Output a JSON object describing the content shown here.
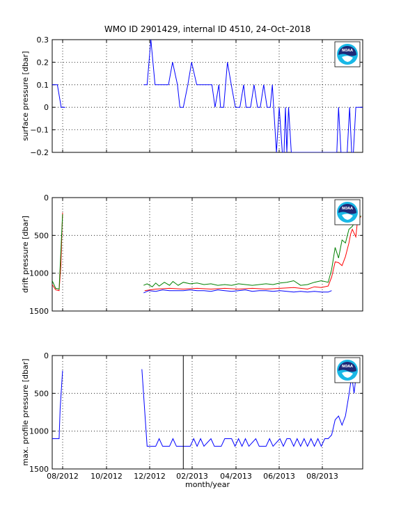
{
  "title": "WMO ID 2901429, internal ID 4510, 24–Oct–2018",
  "xlabel": "month/year",
  "x_ticks": [
    "08/2012",
    "10/2012",
    "12/2012",
    "02/2013",
    "04/2013",
    "06/2013",
    "08/2013"
  ],
  "logo": {
    "name": "noaa-logo",
    "text": "NOAA",
    "colors": {
      "navy": "#1e2a78",
      "cyan": "#19b8e6",
      "white": "#ffffff"
    }
  },
  "chart_data": [
    {
      "type": "line",
      "name": "surface-pressure",
      "ylabel": "surface pressure [dbar]",
      "ylim": [
        -0.2,
        0.3
      ],
      "yticks": [
        "0.3",
        "0.2",
        "0.1",
        "0",
        "−0.1",
        "−0.2"
      ],
      "ytick_values": [
        0.3,
        0.2,
        0.1,
        0,
        -0.1,
        -0.2
      ],
      "y_reversed": false,
      "grid": true,
      "series": [
        {
          "color": "#0000ff",
          "points": [
            [
              0.0,
              0.1
            ],
            [
              1.5,
              0.1
            ],
            [
              2.6,
              0.0
            ],
            [
              3.8,
              0.0
            ],
            [
              null,
              null
            ],
            [
              26.5,
              0.1
            ],
            [
              27.5,
              0.1
            ],
            [
              28.6,
              0.3
            ],
            [
              29.8,
              0.1
            ],
            [
              33.7,
              0.1
            ],
            [
              34.9,
              0.2
            ],
            [
              36.3,
              0.1
            ],
            [
              37.0,
              0.0
            ],
            [
              38.0,
              0.0
            ],
            [
              39.3,
              0.1
            ],
            [
              40.4,
              0.2
            ],
            [
              41.9,
              0.1
            ],
            [
              43.0,
              0.1
            ],
            [
              45.1,
              0.1
            ],
            [
              46.3,
              0.1
            ],
            [
              47.2,
              0.0
            ],
            [
              48.3,
              0.1
            ],
            [
              48.8,
              0.0
            ],
            [
              49.7,
              0.0
            ],
            [
              50.8,
              0.2
            ],
            [
              51.9,
              0.1
            ],
            [
              53.1,
              0.0
            ],
            [
              54.4,
              0.0
            ],
            [
              55.5,
              0.1
            ],
            [
              56.2,
              0.0
            ],
            [
              56.6,
              0.0
            ],
            [
              57.5,
              0.0
            ],
            [
              58.5,
              0.1
            ],
            [
              59.5,
              0.0
            ],
            [
              60.3,
              0.0
            ],
            [
              61.3,
              0.1
            ],
            [
              62.3,
              0.0
            ],
            [
              63.2,
              0.0
            ],
            [
              63.8,
              0.1
            ],
            [
              64.2,
              0.0
            ],
            [
              65.0,
              -0.2
            ],
            [
              65.8,
              0.0
            ],
            [
              66.7,
              -0.2
            ],
            [
              67.2,
              -0.2
            ],
            [
              67.6,
              0.0
            ],
            [
              68.0,
              -0.2
            ],
            [
              68.5,
              0.0
            ],
            [
              69.3,
              -0.2
            ],
            [
              70.5,
              -0.2
            ],
            [
              82.0,
              -0.2
            ],
            [
              82.5,
              -0.2
            ],
            [
              83.0,
              0.0
            ],
            [
              83.7,
              -0.2
            ],
            [
              85.5,
              -0.2
            ],
            [
              86.2,
              0.0
            ],
            [
              86.8,
              -0.2
            ],
            [
              87.3,
              -0.2
            ],
            [
              88.0,
              0.0
            ],
            [
              90.0,
              0.0
            ]
          ]
        }
      ]
    },
    {
      "type": "line",
      "name": "drift-pressure",
      "ylabel": "drift pressure [dbar]",
      "ylim": [
        0,
        1500
      ],
      "yticks": [
        "0",
        "500",
        "1000",
        "1500"
      ],
      "ytick_values": [
        0,
        500,
        1000,
        1500
      ],
      "y_reversed": true,
      "grid": true,
      "series": [
        {
          "color": "#ff0000",
          "points": [
            [
              0.0,
              1150
            ],
            [
              1.0,
              1220
            ],
            [
              2.0,
              1230
            ],
            [
              2.5,
              900
            ],
            [
              3.0,
              200
            ],
            [
              null,
              null
            ],
            [
              26.8,
              1230
            ],
            [
              30.0,
              1210
            ],
            [
              34.0,
              1200
            ],
            [
              38.0,
              1210
            ],
            [
              42.0,
              1200
            ],
            [
              46.0,
              1210
            ],
            [
              50.0,
              1200
            ],
            [
              54.0,
              1210
            ],
            [
              58.0,
              1200
            ],
            [
              62.0,
              1210
            ],
            [
              66.0,
              1200
            ],
            [
              70.0,
              1190
            ],
            [
              74.0,
              1210
            ],
            [
              76.0,
              1180
            ],
            [
              78.0,
              1190
            ],
            [
              80.0,
              1170
            ],
            [
              81.0,
              1050
            ],
            [
              82.0,
              850
            ],
            [
              83.0,
              860
            ],
            [
              84.0,
              900
            ],
            [
              85.0,
              780
            ],
            [
              86.0,
              600
            ],
            [
              86.5,
              480
            ],
            [
              87.0,
              420
            ],
            [
              88.0,
              520
            ],
            [
              88.5,
              300
            ],
            [
              89.5,
              250
            ]
          ]
        },
        {
          "color": "#008000",
          "points": [
            [
              0.0,
              1100
            ],
            [
              1.0,
              1200
            ],
            [
              2.0,
              1210
            ],
            [
              3.0,
              220
            ],
            [
              null,
              null
            ],
            [
              26.5,
              1160
            ],
            [
              27.5,
              1140
            ],
            [
              29.0,
              1180
            ],
            [
              30.0,
              1130
            ],
            [
              31.0,
              1170
            ],
            [
              32.5,
              1120
            ],
            [
              34.0,
              1160
            ],
            [
              35.0,
              1110
            ],
            [
              36.5,
              1160
            ],
            [
              38.0,
              1120
            ],
            [
              40.0,
              1140
            ],
            [
              42.0,
              1130
            ],
            [
              44.0,
              1150
            ],
            [
              46.0,
              1140
            ],
            [
              48.0,
              1160
            ],
            [
              50.0,
              1150
            ],
            [
              52.0,
              1160
            ],
            [
              54.0,
              1140
            ],
            [
              56.0,
              1150
            ],
            [
              58.0,
              1160
            ],
            [
              60.0,
              1150
            ],
            [
              62.0,
              1140
            ],
            [
              64.0,
              1150
            ],
            [
              66.0,
              1130
            ],
            [
              68.0,
              1120
            ],
            [
              70.0,
              1100
            ],
            [
              72.0,
              1160
            ],
            [
              74.0,
              1150
            ],
            [
              76.0,
              1120
            ],
            [
              78.0,
              1100
            ],
            [
              80.0,
              1120
            ],
            [
              81.0,
              950
            ],
            [
              82.0,
              660
            ],
            [
              83.0,
              800
            ],
            [
              84.0,
              560
            ],
            [
              85.0,
              600
            ],
            [
              86.0,
              420
            ],
            [
              87.0,
              380
            ],
            [
              88.0,
              300
            ],
            [
              89.5,
              240
            ]
          ]
        },
        {
          "color": "#0000ff",
          "points": [
            [
              26.5,
              1260
            ],
            [
              28.0,
              1230
            ],
            [
              30.0,
              1240
            ],
            [
              32.0,
              1220
            ],
            [
              34.0,
              1230
            ],
            [
              36.0,
              1230
            ],
            [
              38.0,
              1230
            ],
            [
              40.0,
              1220
            ],
            [
              42.0,
              1230
            ],
            [
              44.0,
              1230
            ],
            [
              46.0,
              1240
            ],
            [
              48.0,
              1220
            ],
            [
              50.0,
              1230
            ],
            [
              52.0,
              1240
            ],
            [
              54.0,
              1230
            ],
            [
              56.0,
              1220
            ],
            [
              58.0,
              1240
            ],
            [
              60.0,
              1230
            ],
            [
              62.0,
              1230
            ],
            [
              64.0,
              1240
            ],
            [
              66.0,
              1230
            ],
            [
              68.0,
              1240
            ],
            [
              70.0,
              1250
            ],
            [
              72.0,
              1240
            ],
            [
              74.0,
              1250
            ],
            [
              76.0,
              1240
            ],
            [
              78.0,
              1250
            ],
            [
              80.0,
              1250
            ],
            [
              81.0,
              1230
            ]
          ]
        }
      ]
    },
    {
      "type": "line",
      "name": "max-profile-pressure",
      "ylabel": "max. profile pressure [dbar]",
      "ylim": [
        0,
        1500
      ],
      "yticks": [
        "0",
        "500",
        "1000",
        "1500"
      ],
      "ytick_values": [
        0,
        500,
        1000,
        1500
      ],
      "y_reversed": true,
      "grid": true,
      "series": [
        {
          "color": "#0000ff",
          "points": [
            [
              0.0,
              1100
            ],
            [
              2.0,
              1100
            ],
            [
              2.3,
              700
            ],
            [
              3.0,
              200
            ],
            [
              null,
              null
            ],
            [
              26.0,
              180
            ],
            [
              27.5,
              1200
            ],
            [
              30.0,
              1200
            ],
            [
              31.0,
              1100
            ],
            [
              32.0,
              1200
            ],
            [
              34.0,
              1200
            ],
            [
              35.0,
              1100
            ],
            [
              36.0,
              1200
            ],
            [
              40.0,
              1200
            ],
            [
              41.0,
              1100
            ],
            [
              42.0,
              1200
            ],
            [
              43.0,
              1100
            ],
            [
              44.0,
              1200
            ],
            [
              46.0,
              1100
            ],
            [
              47.0,
              1200
            ],
            [
              49.0,
              1200
            ],
            [
              50.0,
              1100
            ],
            [
              52.0,
              1100
            ],
            [
              53.0,
              1200
            ],
            [
              54.0,
              1100
            ],
            [
              55.0,
              1200
            ],
            [
              56.0,
              1100
            ],
            [
              57.0,
              1200
            ],
            [
              59.0,
              1100
            ],
            [
              60.0,
              1200
            ],
            [
              62.0,
              1200
            ],
            [
              63.0,
              1100
            ],
            [
              64.0,
              1200
            ],
            [
              66.0,
              1100
            ],
            [
              67.0,
              1200
            ],
            [
              68.0,
              1100
            ],
            [
              69.0,
              1100
            ],
            [
              70.0,
              1200
            ],
            [
              71.0,
              1100
            ],
            [
              72.0,
              1200
            ],
            [
              73.0,
              1100
            ],
            [
              74.0,
              1200
            ],
            [
              75.0,
              1100
            ],
            [
              76.0,
              1200
            ],
            [
              77.0,
              1100
            ],
            [
              78.0,
              1200
            ],
            [
              79.0,
              1100
            ],
            [
              80.0,
              1100
            ],
            [
              81.0,
              1050
            ],
            [
              82.0,
              850
            ],
            [
              83.0,
              800
            ],
            [
              84.0,
              920
            ],
            [
              85.0,
              800
            ],
            [
              86.0,
              520
            ],
            [
              86.5,
              360
            ],
            [
              87.0,
              330
            ],
            [
              87.5,
              500
            ],
            [
              88.0,
              300
            ],
            [
              89.0,
              250
            ]
          ]
        },
        {
          "color": "#000000",
          "points": [
            [
              38.0,
              0
            ],
            [
              38.0,
              1500
            ]
          ]
        }
      ]
    }
  ]
}
